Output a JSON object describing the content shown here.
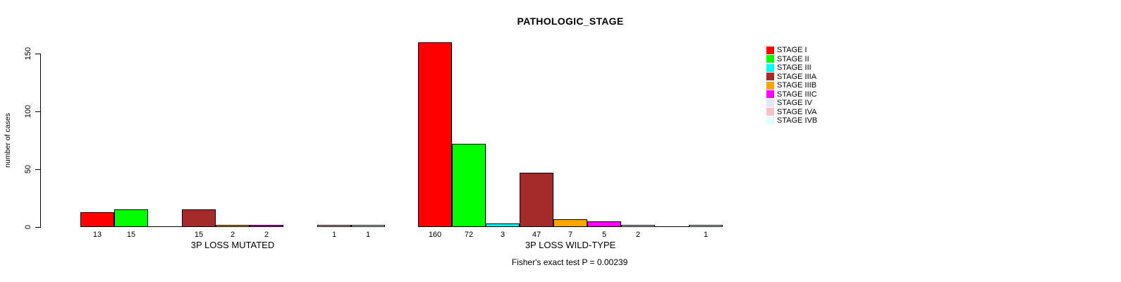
{
  "title": "PATHOLOGIC_STAGE",
  "chart_data": {
    "type": "bar",
    "title": "PATHOLOGIC_STAGE",
    "ylabel": "number of cases",
    "xlabel": "",
    "yticks": [
      0,
      50,
      100,
      150
    ],
    "ylim": [
      0,
      160
    ],
    "grid": false,
    "legend_position": "right",
    "categories": [
      "STAGE I",
      "STAGE II",
      "STAGE III",
      "STAGE IIIA",
      "STAGE IIIB",
      "STAGE IIIC",
      "STAGE IV",
      "STAGE IVA",
      "STAGE IVB"
    ],
    "colors": [
      "#FF0000",
      "#00FF00",
      "#00FFFF",
      "#A52A2A",
      "#FFA500",
      "#FF00FF",
      "#E6E6FA",
      "#FFC0CB",
      "#E0FFFF"
    ],
    "series": [
      {
        "name": "3P LOSS MUTATED",
        "values": [
          13,
          15,
          0,
          15,
          2,
          2,
          null,
          1,
          1
        ]
      },
      {
        "name": "3P LOSS WILD-TYPE",
        "values": [
          160,
          72,
          3,
          47,
          7,
          5,
          2,
          0,
          1
        ]
      }
    ],
    "bar_value_labels": {
      "3P LOSS MUTATED": [
        "13",
        "15",
        "",
        "15",
        "2",
        "2",
        "",
        "1",
        "1"
      ],
      "3P LOSS WILD-TYPE": [
        "160",
        "72",
        "3",
        "47",
        "7",
        "5",
        "2",
        "",
        "1"
      ]
    },
    "annotation": "Fisher's exact test P = 0.00239"
  },
  "legend": {
    "items": [
      {
        "label": "STAGE I",
        "color": "#FF0000"
      },
      {
        "label": "STAGE II",
        "color": "#00FF00"
      },
      {
        "label": "STAGE III",
        "color": "#00FFFF"
      },
      {
        "label": "STAGE IIIA",
        "color": "#A52A2A"
      },
      {
        "label": "STAGE IIIB",
        "color": "#FFA500"
      },
      {
        "label": "STAGE IIIC",
        "color": "#FF00FF"
      },
      {
        "label": "STAGE IV",
        "color": "#E6E6FA"
      },
      {
        "label": "STAGE IVA",
        "color": "#FFC0CB"
      },
      {
        "label": "STAGE IVB",
        "color": "#E0FFFF"
      }
    ]
  }
}
